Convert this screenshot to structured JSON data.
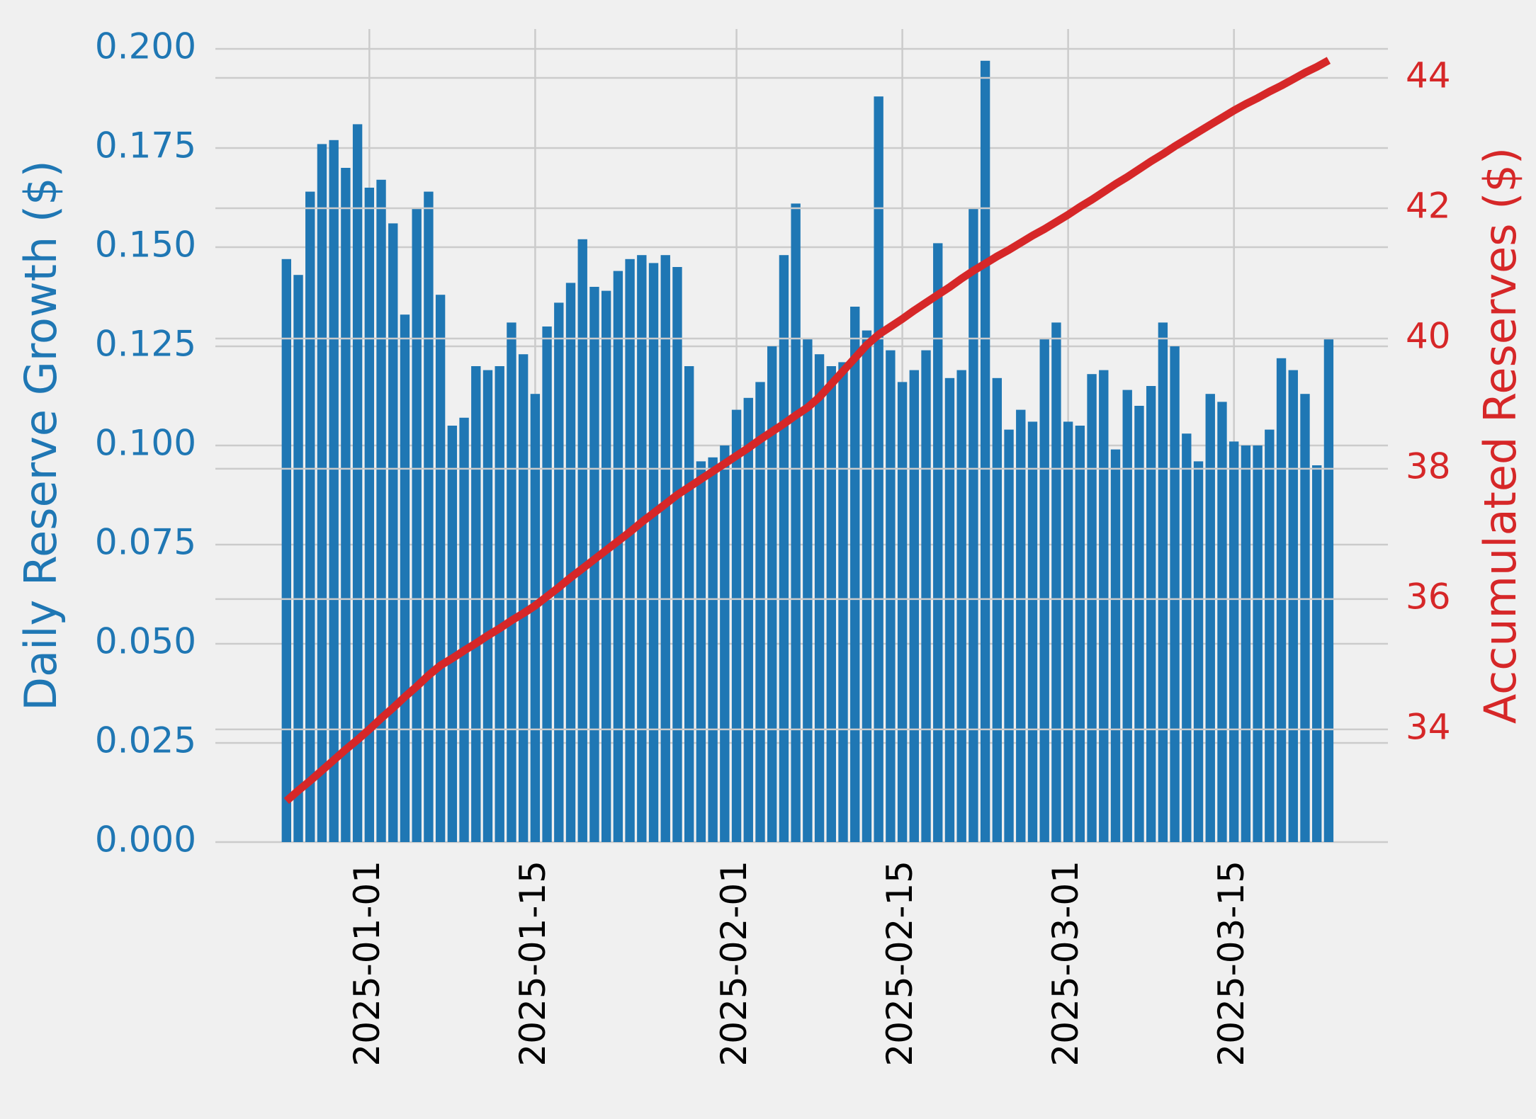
{
  "chart_data": {
    "type": "bar",
    "ylabel": "Daily Reserve Growth ($)",
    "ylabel_color": "#1f77b4",
    "y2label": "Accumulated Reserves ($)",
    "y2label_color": "#d62728",
    "x": [
      "2024-12-25",
      "2024-12-26",
      "2024-12-27",
      "2024-12-28",
      "2024-12-29",
      "2024-12-30",
      "2024-12-31",
      "2025-01-01",
      "2025-01-02",
      "2025-01-03",
      "2025-01-04",
      "2025-01-05",
      "2025-01-06",
      "2025-01-07",
      "2025-01-08",
      "2025-01-09",
      "2025-01-10",
      "2025-01-11",
      "2025-01-12",
      "2025-01-13",
      "2025-01-14",
      "2025-01-15",
      "2025-01-16",
      "2025-01-17",
      "2025-01-18",
      "2025-01-19",
      "2025-01-20",
      "2025-01-21",
      "2025-01-22",
      "2025-01-23",
      "2025-01-24",
      "2025-01-25",
      "2025-01-26",
      "2025-01-27",
      "2025-01-28",
      "2025-01-29",
      "2025-01-30",
      "2025-01-31",
      "2025-02-01",
      "2025-02-02",
      "2025-02-03",
      "2025-02-04",
      "2025-02-05",
      "2025-02-06",
      "2025-02-07",
      "2025-02-08",
      "2025-02-09",
      "2025-02-10",
      "2025-02-11",
      "2025-02-12",
      "2025-02-13",
      "2025-02-14",
      "2025-02-15",
      "2025-02-16",
      "2025-02-17",
      "2025-02-18",
      "2025-02-19",
      "2025-02-20",
      "2025-02-21",
      "2025-02-22",
      "2025-02-23",
      "2025-02-24",
      "2025-02-25",
      "2025-02-26",
      "2025-02-27",
      "2025-02-28",
      "2025-03-01",
      "2025-03-02",
      "2025-03-03",
      "2025-03-04",
      "2025-03-05",
      "2025-03-06",
      "2025-03-07",
      "2025-03-08",
      "2025-03-09",
      "2025-03-10",
      "2025-03-11",
      "2025-03-12",
      "2025-03-13",
      "2025-03-14",
      "2025-03-15",
      "2025-03-16",
      "2025-03-17",
      "2025-03-18",
      "2025-03-19",
      "2025-03-20",
      "2025-03-21",
      "2025-03-22",
      "2025-03-23"
    ],
    "series": [
      {
        "type": "bar",
        "color": "#1f77b4",
        "values": [
          0.147,
          0.143,
          0.164,
          0.176,
          0.177,
          0.17,
          0.181,
          0.165,
          0.167,
          0.156,
          0.133,
          0.16,
          0.164,
          0.138,
          0.105,
          0.107,
          0.12,
          0.119,
          0.12,
          0.131,
          0.123,
          0.113,
          0.13,
          0.136,
          0.141,
          0.152,
          0.14,
          0.139,
          0.144,
          0.147,
          0.148,
          0.146,
          0.148,
          0.145,
          0.12,
          0.096,
          0.097,
          0.1,
          0.109,
          0.112,
          0.116,
          0.125,
          0.148,
          0.161,
          0.127,
          0.123,
          0.12,
          0.121,
          0.135,
          0.129,
          0.188,
          0.124,
          0.116,
          0.119,
          0.124,
          0.151,
          0.117,
          0.119,
          0.16,
          0.197,
          0.117,
          0.104,
          0.109,
          0.106,
          0.127,
          0.131,
          0.106,
          0.105,
          0.118,
          0.119,
          0.099,
          0.114,
          0.11,
          0.115,
          0.131,
          0.125,
          0.103,
          0.096,
          0.113,
          0.111,
          0.101,
          0.1,
          0.1,
          0.104,
          0.122,
          0.119,
          0.113,
          0.095,
          0.127
        ]
      },
      {
        "type": "line",
        "axis": "y2",
        "color": "#d62728",
        "values": [
          32.9,
          33.06,
          33.21,
          33.37,
          33.53,
          33.69,
          33.84,
          34.0,
          34.17,
          34.33,
          34.5,
          34.66,
          34.83,
          34.98,
          35.09,
          35.21,
          35.32,
          35.44,
          35.55,
          35.67,
          35.78,
          35.9,
          36.04,
          36.18,
          36.33,
          36.47,
          36.61,
          36.75,
          36.89,
          37.03,
          37.18,
          37.32,
          37.46,
          37.6,
          37.72,
          37.84,
          37.96,
          38.08,
          38.2,
          38.32,
          38.45,
          38.57,
          38.69,
          38.82,
          38.94,
          39.1,
          39.3,
          39.5,
          39.7,
          39.9,
          40.06,
          40.18,
          40.3,
          40.43,
          40.55,
          40.67,
          40.79,
          40.92,
          41.04,
          41.15,
          41.26,
          41.36,
          41.47,
          41.58,
          41.68,
          41.79,
          41.9,
          42.02,
          42.13,
          42.25,
          42.37,
          42.48,
          42.6,
          42.72,
          42.83,
          42.95,
          43.06,
          43.17,
          43.28,
          43.39,
          43.5,
          43.6,
          43.69,
          43.79,
          43.88,
          43.98,
          44.08,
          44.17,
          44.27
        ]
      }
    ],
    "xlim": [
      "2024-12-19",
      "2025-03-28"
    ],
    "xticks": [
      "2025-01-01",
      "2025-01-15",
      "2025-02-01",
      "2025-02-15",
      "2025-03-01",
      "2025-03-15"
    ],
    "ylim": [
      0,
      0.205
    ],
    "yticks": [
      {
        "value": 0,
        "label": "0.000"
      },
      {
        "value": 0.025,
        "label": "0.025"
      },
      {
        "value": 0.05,
        "label": "0.050"
      },
      {
        "value": 0.075,
        "label": "0.075"
      },
      {
        "value": 0.1,
        "label": "0.100"
      },
      {
        "value": 0.125,
        "label": "0.125"
      },
      {
        "value": 0.15,
        "label": "0.150"
      },
      {
        "value": 0.175,
        "label": "0.175"
      },
      {
        "value": 0.2,
        "label": "0.200"
      }
    ],
    "y2lim": [
      32.27,
      44.75
    ],
    "y2ticks": [
      34,
      36,
      38,
      40,
      42,
      44
    ],
    "grid": true
  }
}
